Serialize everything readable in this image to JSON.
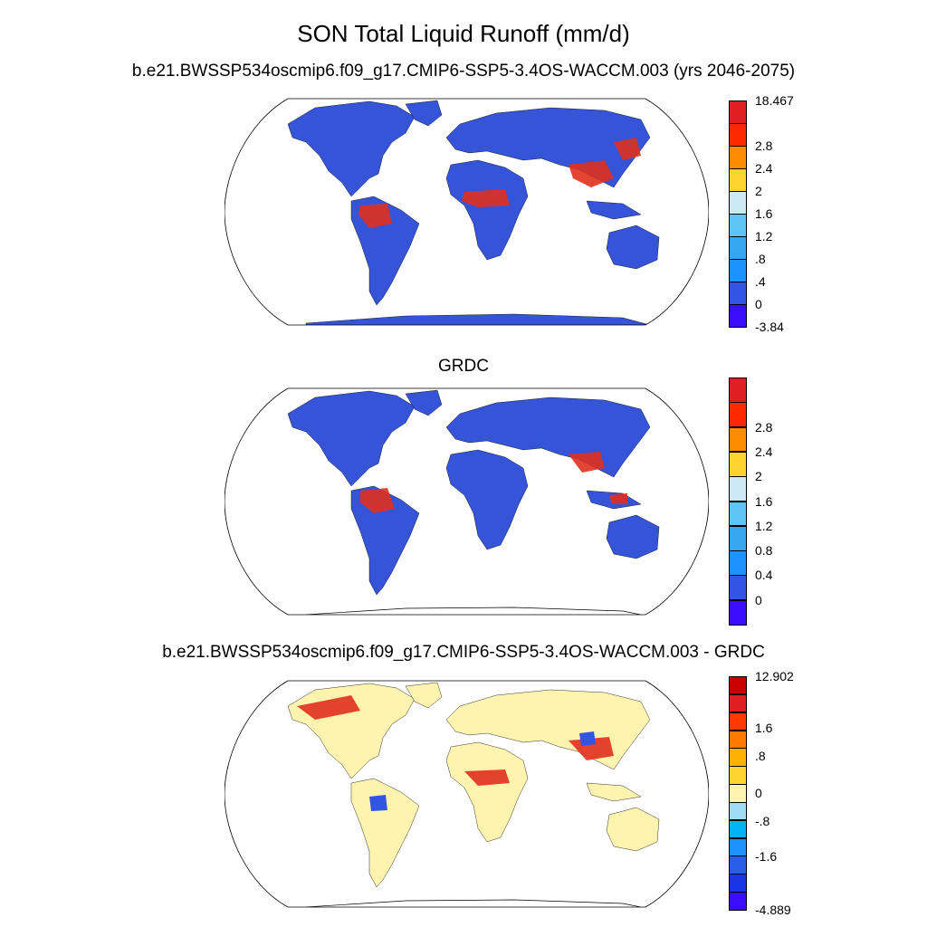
{
  "figure": {
    "title": "SON Total Liquid Runoff (mm/d)"
  },
  "panels": [
    {
      "id": "model",
      "title": "b.e21.BWSSP534oscmip6.f09_g17.CMIP6-SSP5-3.4OS-WACCM.003 (yrs 2046-2075)",
      "colors": [
        "#3a0dff",
        "#3355e6",
        "#1e90ff",
        "#36a6f0",
        "#5ec4f5",
        "#cde9f7",
        "#ffd42e",
        "#ff8c00",
        "#ff2a00",
        "#e02020"
      ],
      "labels": [
        "-3.84",
        "0",
        ".4",
        ".8",
        "1.2",
        "1.6",
        "2",
        "2.4",
        "2.8",
        "18.467"
      ],
      "base_color": "#3554d8",
      "hot_color": "#e0301f"
    },
    {
      "id": "obs",
      "title": "GRDC",
      "colors": [
        "#3a0dff",
        "#3355e6",
        "#1e90ff",
        "#36a6f0",
        "#5ec4f5",
        "#cde9f7",
        "#ffd42e",
        "#ff8c00",
        "#ff2a00",
        "#e02020"
      ],
      "labels": [
        "0",
        "0.4",
        "0.8",
        "1.2",
        "1.6",
        "2",
        "2.4",
        "2.8"
      ],
      "base_color": "#3554d8",
      "hot_color": "#e0301f"
    },
    {
      "id": "diff",
      "title": "b.e21.BWSSP534oscmip6.f09_g17.CMIP6-SSP5-3.4OS-WACCM.003 - GRDC",
      "colors": [
        "#3a0dff",
        "#1a35e6",
        "#2a5ee8",
        "#1e90ff",
        "#00b4f5",
        "#9fdcf5",
        "#fff3b0",
        "#ffd42e",
        "#ffb000",
        "#ff7a00",
        "#ff3a00",
        "#e02020",
        "#c80000"
      ],
      "labels": [
        "-4.889",
        "-1.6",
        "-.8",
        "0",
        ".8",
        "1.6",
        "12.902"
      ],
      "base_color": "#fff3b0",
      "hot_color": "#e0301f"
    }
  ]
}
